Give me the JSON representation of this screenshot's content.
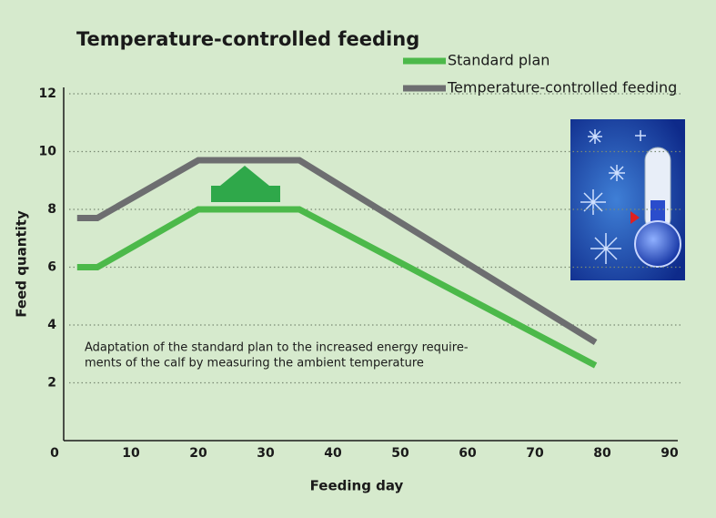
{
  "chart_data": {
    "type": "line",
    "title": "Temperature-controlled feeding",
    "xlabel": "Feeding day",
    "ylabel": "Feed quantity",
    "xlim": [
      0,
      90
    ],
    "ylim": [
      0,
      12
    ],
    "xticks": [
      0,
      10,
      20,
      30,
      40,
      50,
      60,
      70,
      80,
      90
    ],
    "yticks": [
      2,
      4,
      6,
      8,
      10,
      12
    ],
    "grid": true,
    "legend": "upper right",
    "series": [
      {
        "name": "Standard plan",
        "color": "#4cb94a",
        "x": [
          2,
          5,
          20,
          35,
          79
        ],
        "values": [
          6,
          6,
          8,
          8,
          2.6
        ]
      },
      {
        "name": "Temperature-controlled feeding",
        "color": "#6d6e70",
        "x": [
          2,
          5,
          20,
          35,
          79
        ],
        "values": [
          7.7,
          7.7,
          9.7,
          9.7,
          3.4
        ]
      }
    ],
    "annotations": [
      "Adaptation of the standard plan to the increased energy require-",
      "ments of the calf by measuring the ambient temperature"
    ]
  }
}
